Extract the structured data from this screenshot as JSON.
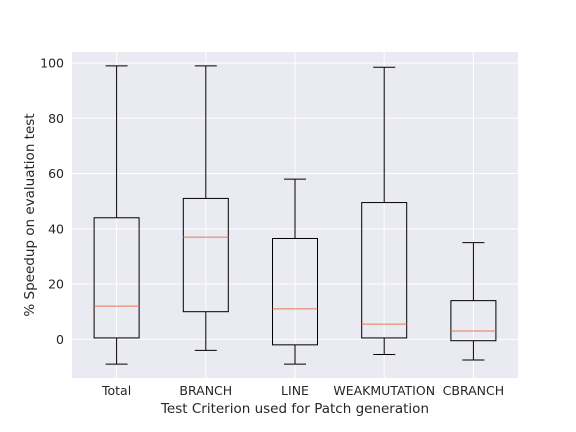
{
  "chart_data": {
    "type": "box",
    "title": "",
    "xlabel": "Test Criterion used for Patch generation",
    "ylabel": "% Speedup on evaluation test",
    "ylim": [
      -14,
      104
    ],
    "yticks": [
      0,
      20,
      40,
      60,
      80,
      100
    ],
    "grid": true,
    "legend": "none",
    "categories": [
      "Total",
      "BRANCH",
      "LINE",
      "WEAKMUTATION",
      "CBRANCH"
    ],
    "series": [
      {
        "category": "Total",
        "whisker_low": -9,
        "q1": 0.5,
        "median": 12,
        "q3": 44,
        "whisker_high": 99
      },
      {
        "category": "BRANCH",
        "whisker_low": -4,
        "q1": 10,
        "median": 37,
        "q3": 51,
        "whisker_high": 99
      },
      {
        "category": "LINE",
        "whisker_low": -9,
        "q1": -2,
        "median": 11,
        "q3": 36.5,
        "whisker_high": 58
      },
      {
        "category": "WEAKMUTATION",
        "whisker_low": -5.5,
        "q1": 0.5,
        "median": 5.5,
        "q3": 49.5,
        "whisker_high": 98.5
      },
      {
        "category": "CBRANCH",
        "whisker_low": -7.5,
        "q1": -0.5,
        "median": 3,
        "q3": 14,
        "whisker_high": 35
      }
    ],
    "colors": {
      "background": "#eaeaf2",
      "grid": "#ffffff",
      "box": "#000000",
      "median": "#e9774f"
    }
  }
}
